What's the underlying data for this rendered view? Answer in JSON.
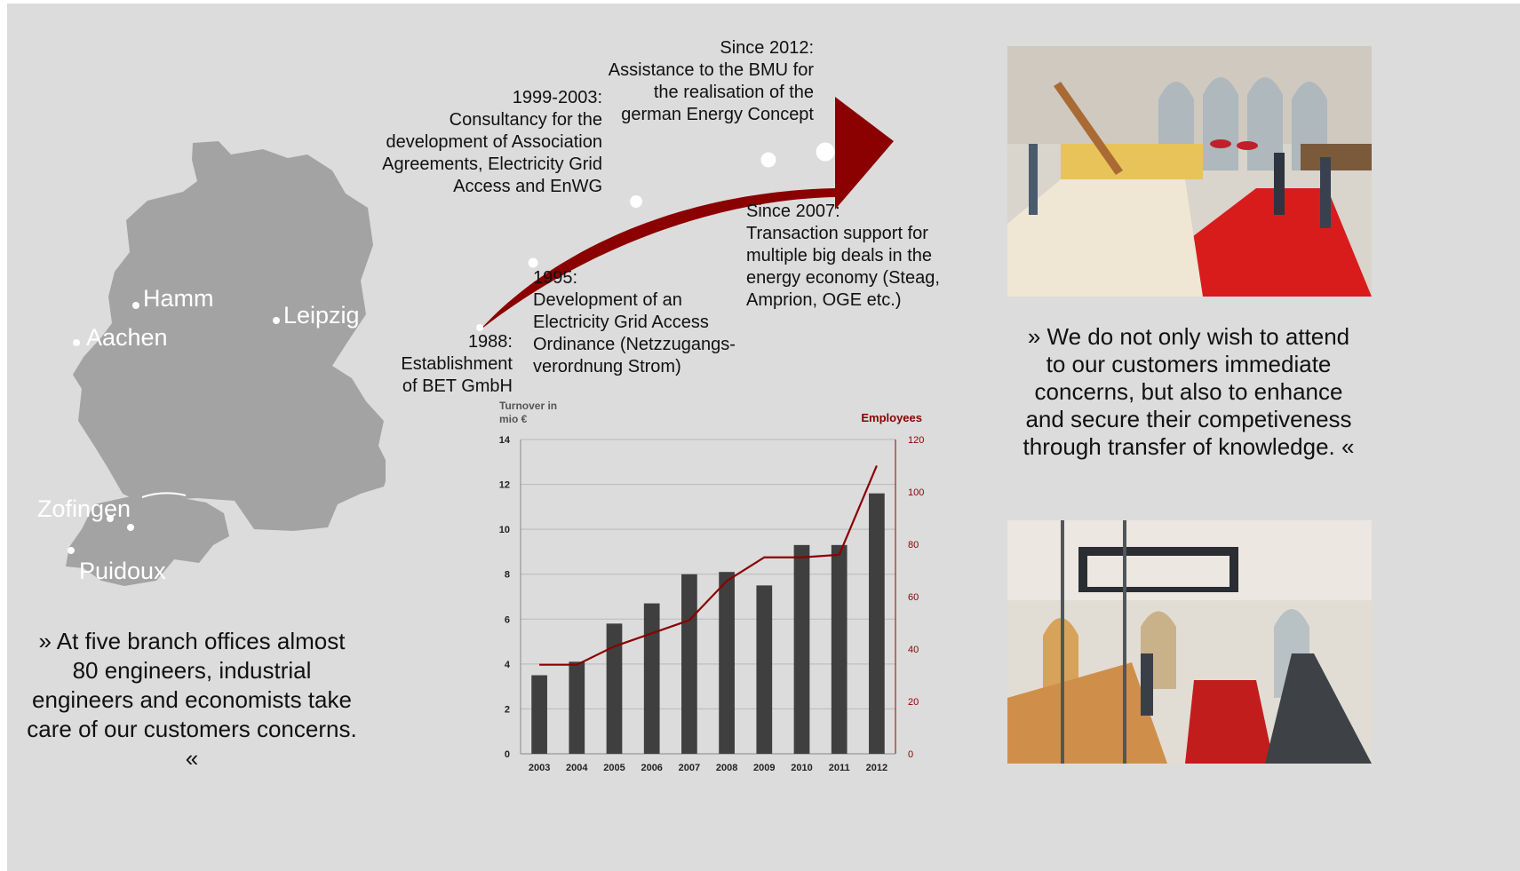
{
  "map": {
    "cities": [
      "Hamm",
      "Aachen",
      "Leipzig",
      "Zofingen",
      "Puidoux"
    ]
  },
  "left_quote": "» At five branch offices almost 80 engineers, industrial engineers and economists take care of our customers concerns. «",
  "right_quote": "» We do not only wish to attend to our customers immediate concerns, but also to enhance and secure their competiveness through transfer of knowledge. «",
  "timeline": {
    "e1988": "1988:\nEstablishment\nof BET GmbH",
    "e1995": "1995:\nDevelopment of an\nElectricity Grid Access\nOrdinance (Netzzugangs-\nverordnung Strom)",
    "e1999": "1999-2003:\nConsultancy for the\ndevelopment of Association\nAgreements, Electricity Grid\nAccess and EnWG",
    "e2007": "Since 2007:\nTransaction support for\nmultiple big deals in the\nenergy economy (Steag,\nAmprion, OGE etc.)",
    "e2012": "Since 2012:\nAssistance to the BMU for\nthe realisation of the\ngerman Energy Concept"
  },
  "colors": {
    "accent": "#8b0000",
    "bar": "#3f3f3f",
    "background": "#dcdcdc",
    "map": "#a3a3a3"
  },
  "chart_data": {
    "type": "bar",
    "categories": [
      "2003",
      "2004",
      "2005",
      "2006",
      "2007",
      "2008",
      "2009",
      "2010",
      "2011",
      "2012"
    ],
    "series": [
      {
        "name": "Turnover in mio €",
        "kind": "bar",
        "axis": "left",
        "values": [
          3.5,
          4.1,
          5.8,
          6.7,
          8.0,
          8.1,
          7.5,
          9.3,
          9.3,
          11.6
        ]
      },
      {
        "name": "Employees",
        "kind": "line",
        "axis": "right",
        "values": [
          34,
          34,
          41,
          46,
          51,
          66,
          75,
          75,
          76,
          110
        ]
      }
    ],
    "ylabel": "Turnover in mio €",
    "y2label": "Employees",
    "ylim": [
      0,
      14
    ],
    "y2lim": [
      0,
      120
    ],
    "yticks": [
      0,
      2,
      4,
      6,
      8,
      10,
      12,
      14
    ],
    "y2ticks": [
      0,
      20,
      40,
      60,
      80,
      100,
      120
    ],
    "grid": true
  }
}
